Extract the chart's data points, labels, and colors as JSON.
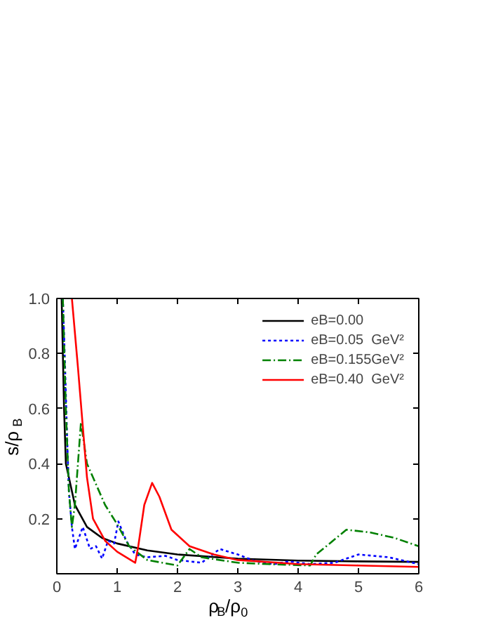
{
  "chart_data": {
    "type": "line",
    "xlabel": "ρ$_{B}$/ρ$_{0}$",
    "ylabel": "s/ρ$_{B}$",
    "xlim": [
      0,
      6
    ],
    "ylim": [
      0,
      1.0
    ],
    "xticks": [
      0,
      1,
      2,
      3,
      4,
      5,
      6
    ],
    "yticks": [
      {
        "value": 0.2,
        "label": "0.2"
      },
      {
        "value": 0.4,
        "label": "0.4"
      },
      {
        "value": 0.6,
        "label": "0.6"
      },
      {
        "value": 0.8,
        "label": "0.8"
      },
      {
        "value": 1.0,
        "label": "1.0"
      }
    ],
    "grid": false,
    "legend": "top right",
    "marker": "none",
    "series": [
      {
        "name": "eB=0.00",
        "color": "#000000",
        "line_style": "solid",
        "x": [
          0.08,
          0.12,
          0.15,
          0.3,
          0.5,
          0.75,
          1,
          1.5,
          2,
          3,
          4,
          5,
          6
        ],
        "values": [
          1.0,
          0.6,
          0.4,
          0.25,
          0.17,
          0.13,
          0.11,
          0.085,
          0.07,
          0.055,
          0.048,
          0.045,
          0.043
        ]
      },
      {
        "name": "eB=0.05  GeV²",
        "color": "#0000ff",
        "line_style": "dotted",
        "x": [
          0.1,
          0.13,
          0.17,
          0.2,
          0.25,
          0.3,
          0.43,
          0.55,
          0.65,
          0.75,
          0.85,
          0.95,
          1.02,
          1.15,
          1.3,
          1.5,
          1.8,
          2.0,
          2.4,
          2.7,
          3.0,
          3.3,
          3.6,
          3.85,
          4.2,
          4.6,
          5.0,
          5.5,
          6
        ],
        "values": [
          1.0,
          0.8,
          0.5,
          0.3,
          0.17,
          0.09,
          0.17,
          0.09,
          0.1,
          0.055,
          0.12,
          0.11,
          0.19,
          0.12,
          0.07,
          0.06,
          0.065,
          0.05,
          0.04,
          0.09,
          0.07,
          0.045,
          0.035,
          0.045,
          0.035,
          0.04,
          0.07,
          0.06,
          0.035
        ]
      },
      {
        "name": "eB=0.155GeV²",
        "color": "#008000",
        "line_style": "dashdot",
        "x": [
          0.1,
          0.15,
          0.2,
          0.25,
          0.3,
          0.4,
          0.5,
          0.6,
          0.8,
          1.0,
          1.2,
          1.5,
          2.0,
          2.2,
          2.4,
          3,
          3.5,
          4.2,
          4.3,
          4.8,
          5.2,
          5.6,
          6
        ],
        "values": [
          1.0,
          0.6,
          0.3,
          0.17,
          0.25,
          0.55,
          0.4,
          0.35,
          0.25,
          0.18,
          0.1,
          0.05,
          0.03,
          0.09,
          0.06,
          0.04,
          0.035,
          0.03,
          0.07,
          0.16,
          0.15,
          0.13,
          0.1
        ]
      },
      {
        "name": "eB=0.40  GeV²",
        "color": "#ff0000",
        "line_style": "solid",
        "x": [
          0.25,
          0.35,
          0.5,
          0.6,
          0.8,
          1.0,
          1.3,
          1.35,
          1.45,
          1.58,
          1.7,
          1.9,
          2.2,
          2.6,
          3,
          4,
          5,
          6
        ],
        "values": [
          1.0,
          0.75,
          0.35,
          0.2,
          0.12,
          0.08,
          0.04,
          0.1,
          0.25,
          0.33,
          0.28,
          0.16,
          0.1,
          0.07,
          0.05,
          0.035,
          0.03,
          0.025
        ]
      }
    ]
  }
}
